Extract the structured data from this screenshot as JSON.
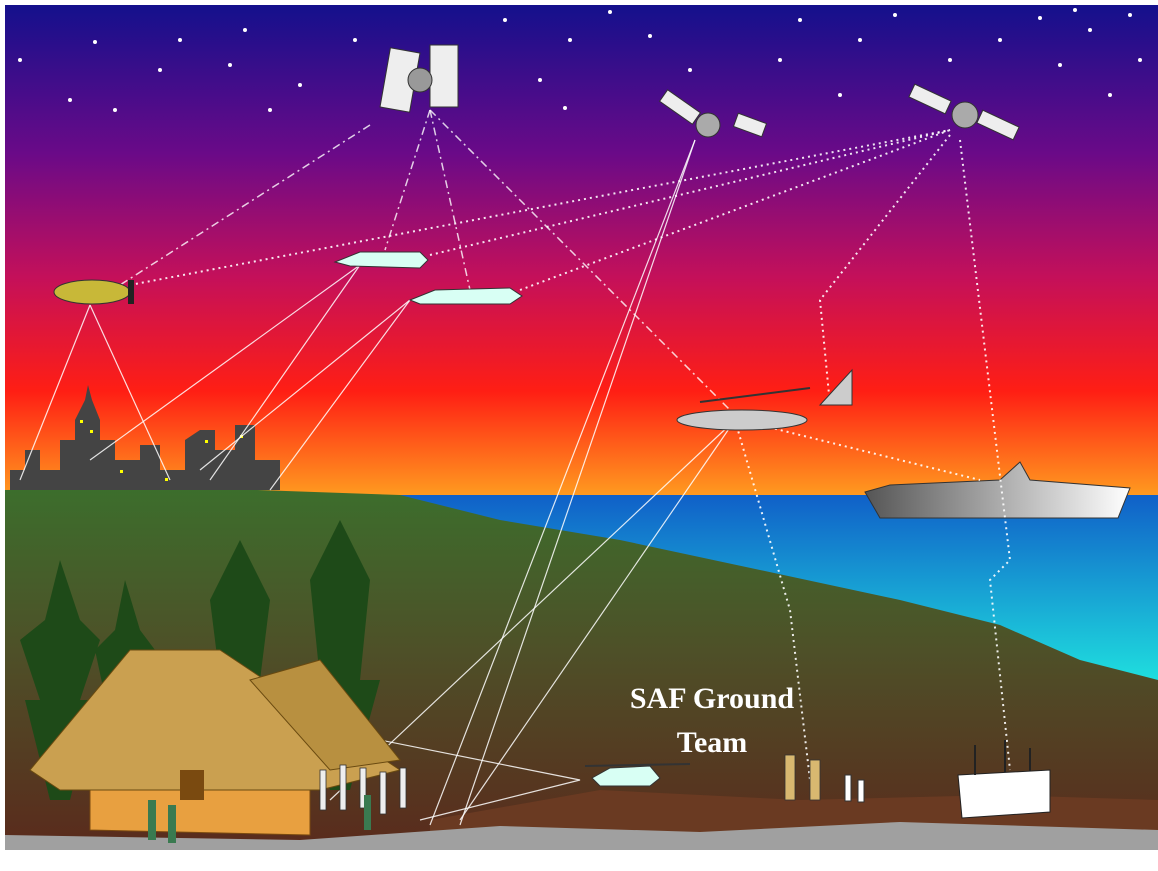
{
  "label": {
    "lines": [
      "SAF Ground",
      "Team"
    ]
  }
}
